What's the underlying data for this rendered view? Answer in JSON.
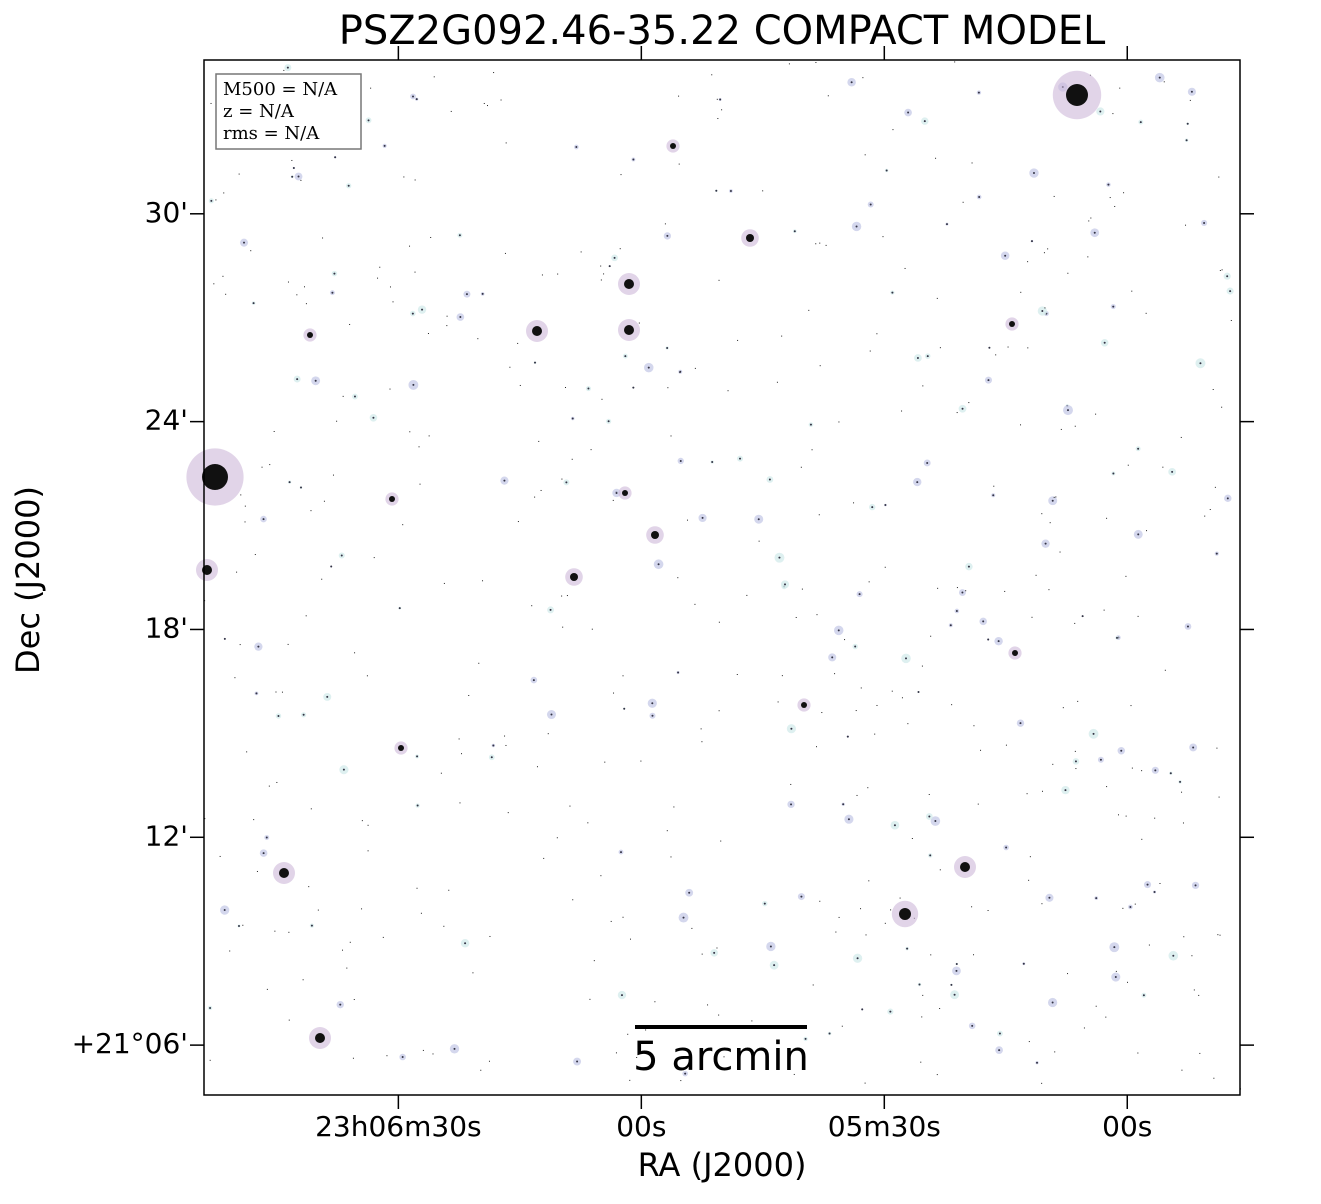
{
  "chart_data": {
    "type": "image",
    "title": "PSZ2G092.46-35.22 COMPACT MODEL",
    "xlabel": "RA (J2000)",
    "ylabel": "Dec (J2000)",
    "xlim": [
      346.725,
      346.192
    ],
    "ylim": [
      21.076,
      21.574
    ],
    "xticks": [
      {
        "value": 346.625,
        "label": "23h06m30s"
      },
      {
        "value": 346.5,
        "label": "00s"
      },
      {
        "value": 346.375,
        "label": "05m30s"
      },
      {
        "value": 346.25,
        "label": "00s"
      }
    ],
    "yticks": [
      {
        "value": 21.1,
        "label": "+21°06'"
      },
      {
        "value": 21.2,
        "label": "12'"
      },
      {
        "value": 21.3,
        "label": "18'"
      },
      {
        "value": 21.4,
        "label": "24'"
      },
      {
        "value": 21.5,
        "label": "30'"
      }
    ],
    "info_box": [
      "M500 = N/A",
      "z = N/A",
      "rms = N/A"
    ],
    "scale_bar_label": "5 arcmin"
  }
}
